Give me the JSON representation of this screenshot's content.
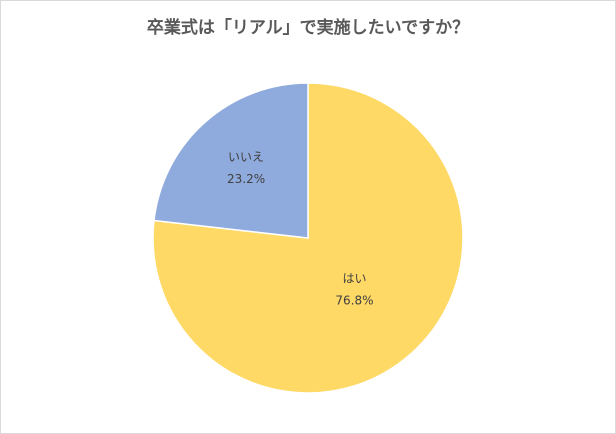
{
  "chart_data": {
    "type": "pie",
    "title": "卒業式は「リアル」で実施したいですか？",
    "categories": [
      "はい",
      "いいえ"
    ],
    "values": [
      76.8,
      23.2
    ],
    "value_labels": [
      "76.8%",
      "23.2%"
    ],
    "colors": [
      "#ffd966",
      "#8faadc"
    ]
  }
}
